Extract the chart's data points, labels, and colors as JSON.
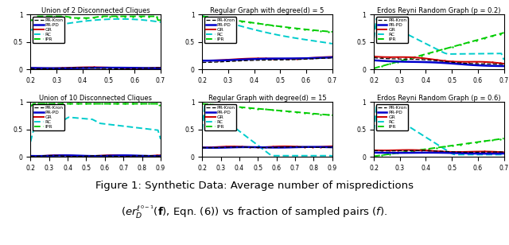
{
  "titles": [
    "Union of 2 Disconnected Cliques",
    "Regular Graph with degree(d) = 5",
    "Erdos Reyni Random Graph (p = 0.2)",
    "Union of 10 Disconnected Cliques",
    "Regular Graph with degree(d) = 15",
    "Erdos Reyni Random Graph (p = 0.6)"
  ],
  "x_ranges": [
    [
      0.2,
      0.7
    ],
    [
      0.2,
      0.7
    ],
    [
      0.2,
      0.7
    ],
    [
      0.2,
      0.9
    ],
    [
      0.2,
      0.9
    ],
    [
      0.2,
      0.7
    ]
  ],
  "x_ticks_top": [
    0.2,
    0.3,
    0.4,
    0.5,
    0.6,
    0.7
  ],
  "x_ticks_bot_long": [
    0.2,
    0.3,
    0.4,
    0.5,
    0.6,
    0.7,
    0.8,
    0.9
  ],
  "y_range": [
    0,
    1
  ],
  "y_ticks": [
    0,
    0.5,
    1
  ],
  "legend_labels": [
    "PR-Kron",
    "PR-PD",
    "GR",
    "RC",
    "IPR"
  ],
  "colors": {
    "PR-Kron": "#000000",
    "PR-PD": "#0000cc",
    "GR": "#cc0000",
    "RC": "#00cccc",
    "IPR": "#00cc00"
  },
  "caption_line1": "Figure 1: Synthetic Data: Average number of mispredictions",
  "caption_line2": "$(er_D^{\\ell^{0-1}}(\\mathbf{f})$, Eqn. (6)) vs fraction of sampled pairs $(f)$."
}
